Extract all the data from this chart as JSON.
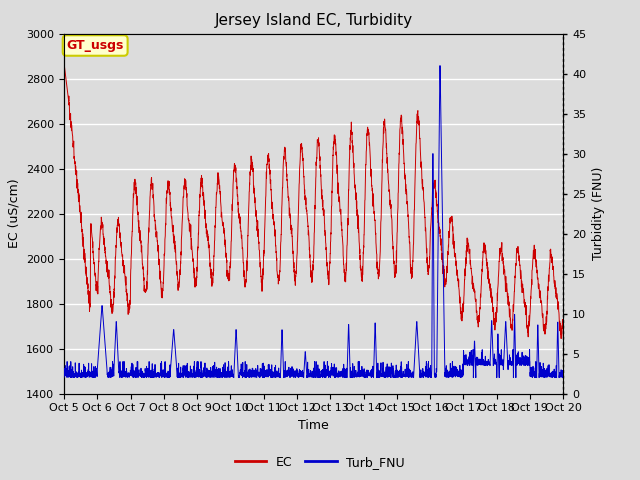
{
  "title": "Jersey Island EC, Turbidity",
  "xlabel": "Time",
  "ylabel_left": "EC (uS/cm)",
  "ylabel_right": "Turbidity (FNU)",
  "ylim_left": [
    1400,
    3000
  ],
  "ylim_right": [
    0,
    45
  ],
  "yticks_left": [
    1400,
    1600,
    1800,
    2000,
    2200,
    2400,
    2600,
    2800,
    3000
  ],
  "yticks_right": [
    0,
    5,
    10,
    15,
    20,
    25,
    30,
    35,
    40,
    45
  ],
  "xtick_labels": [
    "Oct 5",
    "Oct 6",
    "Oct 7",
    "Oct 8",
    "Oct 9",
    "Oct 10",
    "Oct 11",
    "Oct 12",
    "Oct 13",
    "Oct 14",
    "Oct 15",
    "Oct 16",
    "Oct 17",
    "Oct 18",
    "Oct 19",
    "Oct 20"
  ],
  "ec_color": "#cc0000",
  "turb_color": "#0000cc",
  "bg_color": "#dcdcdc",
  "legend_box_color": "#ffffcc",
  "legend_box_edge": "#cccc00",
  "label_box_text": "GT_usgs",
  "title_fontsize": 11,
  "axis_fontsize": 9,
  "tick_fontsize": 8
}
